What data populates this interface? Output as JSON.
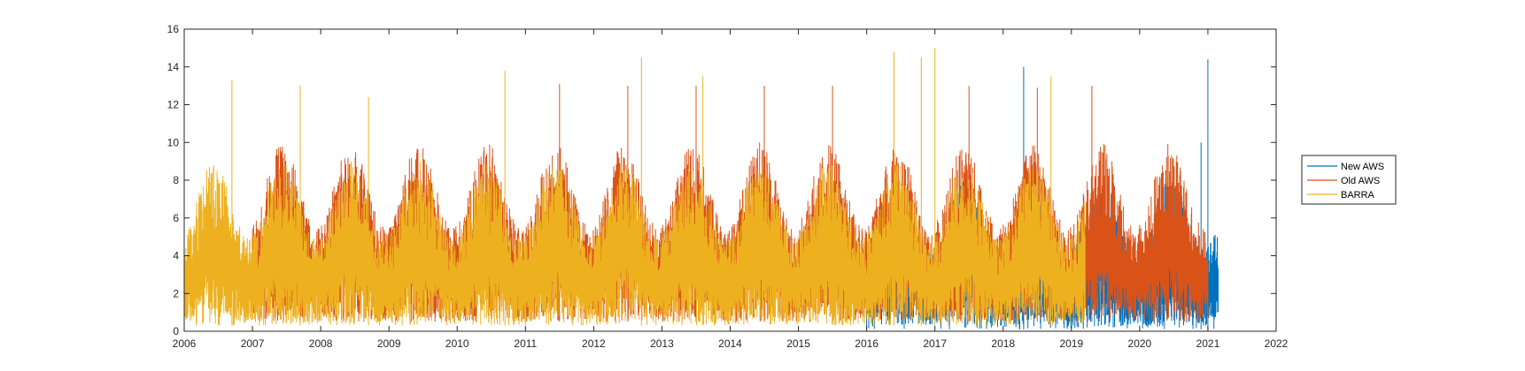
{
  "chart_data": {
    "type": "line",
    "title": "",
    "xlabel": "",
    "ylabel": "",
    "xlim": [
      2006,
      2022
    ],
    "ylim": [
      0,
      16
    ],
    "x_ticks": [
      "2006",
      "2007",
      "2008",
      "2009",
      "2010",
      "2011",
      "2012",
      "2013",
      "2014",
      "2015",
      "2016",
      "2017",
      "2018",
      "2019",
      "2020",
      "2021",
      "2022"
    ],
    "y_ticks": [
      "0",
      "2",
      "4",
      "6",
      "8",
      "10",
      "12",
      "14",
      "16"
    ],
    "grid": false,
    "legend_position": "outside-right",
    "series": [
      {
        "name": "New AWS",
        "color": "#0072BD",
        "x_range": [
          2016.0,
          2021.15
        ],
        "typical_min": 0.1,
        "typical_max": 8,
        "max": 14.4,
        "peaks": [
          [
            2018.3,
            14.0
          ],
          [
            2021.0,
            14.4
          ],
          [
            2020.9,
            10.0
          ]
        ]
      },
      {
        "name": "Old AWS",
        "color": "#D95319",
        "x_range": [
          2007.0,
          2021.0
        ],
        "typical_min": 0.5,
        "typical_max": 10,
        "max": 13.1,
        "peaks": [
          [
            2011.5,
            13.1
          ],
          [
            2012.5,
            13.0
          ],
          [
            2013.5,
            13.0
          ],
          [
            2014.5,
            13.0
          ],
          [
            2015.5,
            13.0
          ],
          [
            2017.5,
            13.0
          ],
          [
            2019.3,
            13.0
          ],
          [
            2018.5,
            12.9
          ]
        ]
      },
      {
        "name": "BARRA",
        "color": "#EDB120",
        "x_range": [
          2006.0,
          2019.2
        ],
        "typical_min": 0.3,
        "typical_max": 9,
        "max": 15.0,
        "peaks": [
          [
            2006.7,
            13.3
          ],
          [
            2007.7,
            13.0
          ],
          [
            2008.7,
            12.4
          ],
          [
            2010.7,
            13.8
          ],
          [
            2012.7,
            14.5
          ],
          [
            2013.6,
            13.5
          ],
          [
            2016.4,
            14.8
          ],
          [
            2016.8,
            14.5
          ],
          [
            2017.0,
            15.0
          ],
          [
            2018.7,
            13.5
          ]
        ]
      }
    ]
  }
}
